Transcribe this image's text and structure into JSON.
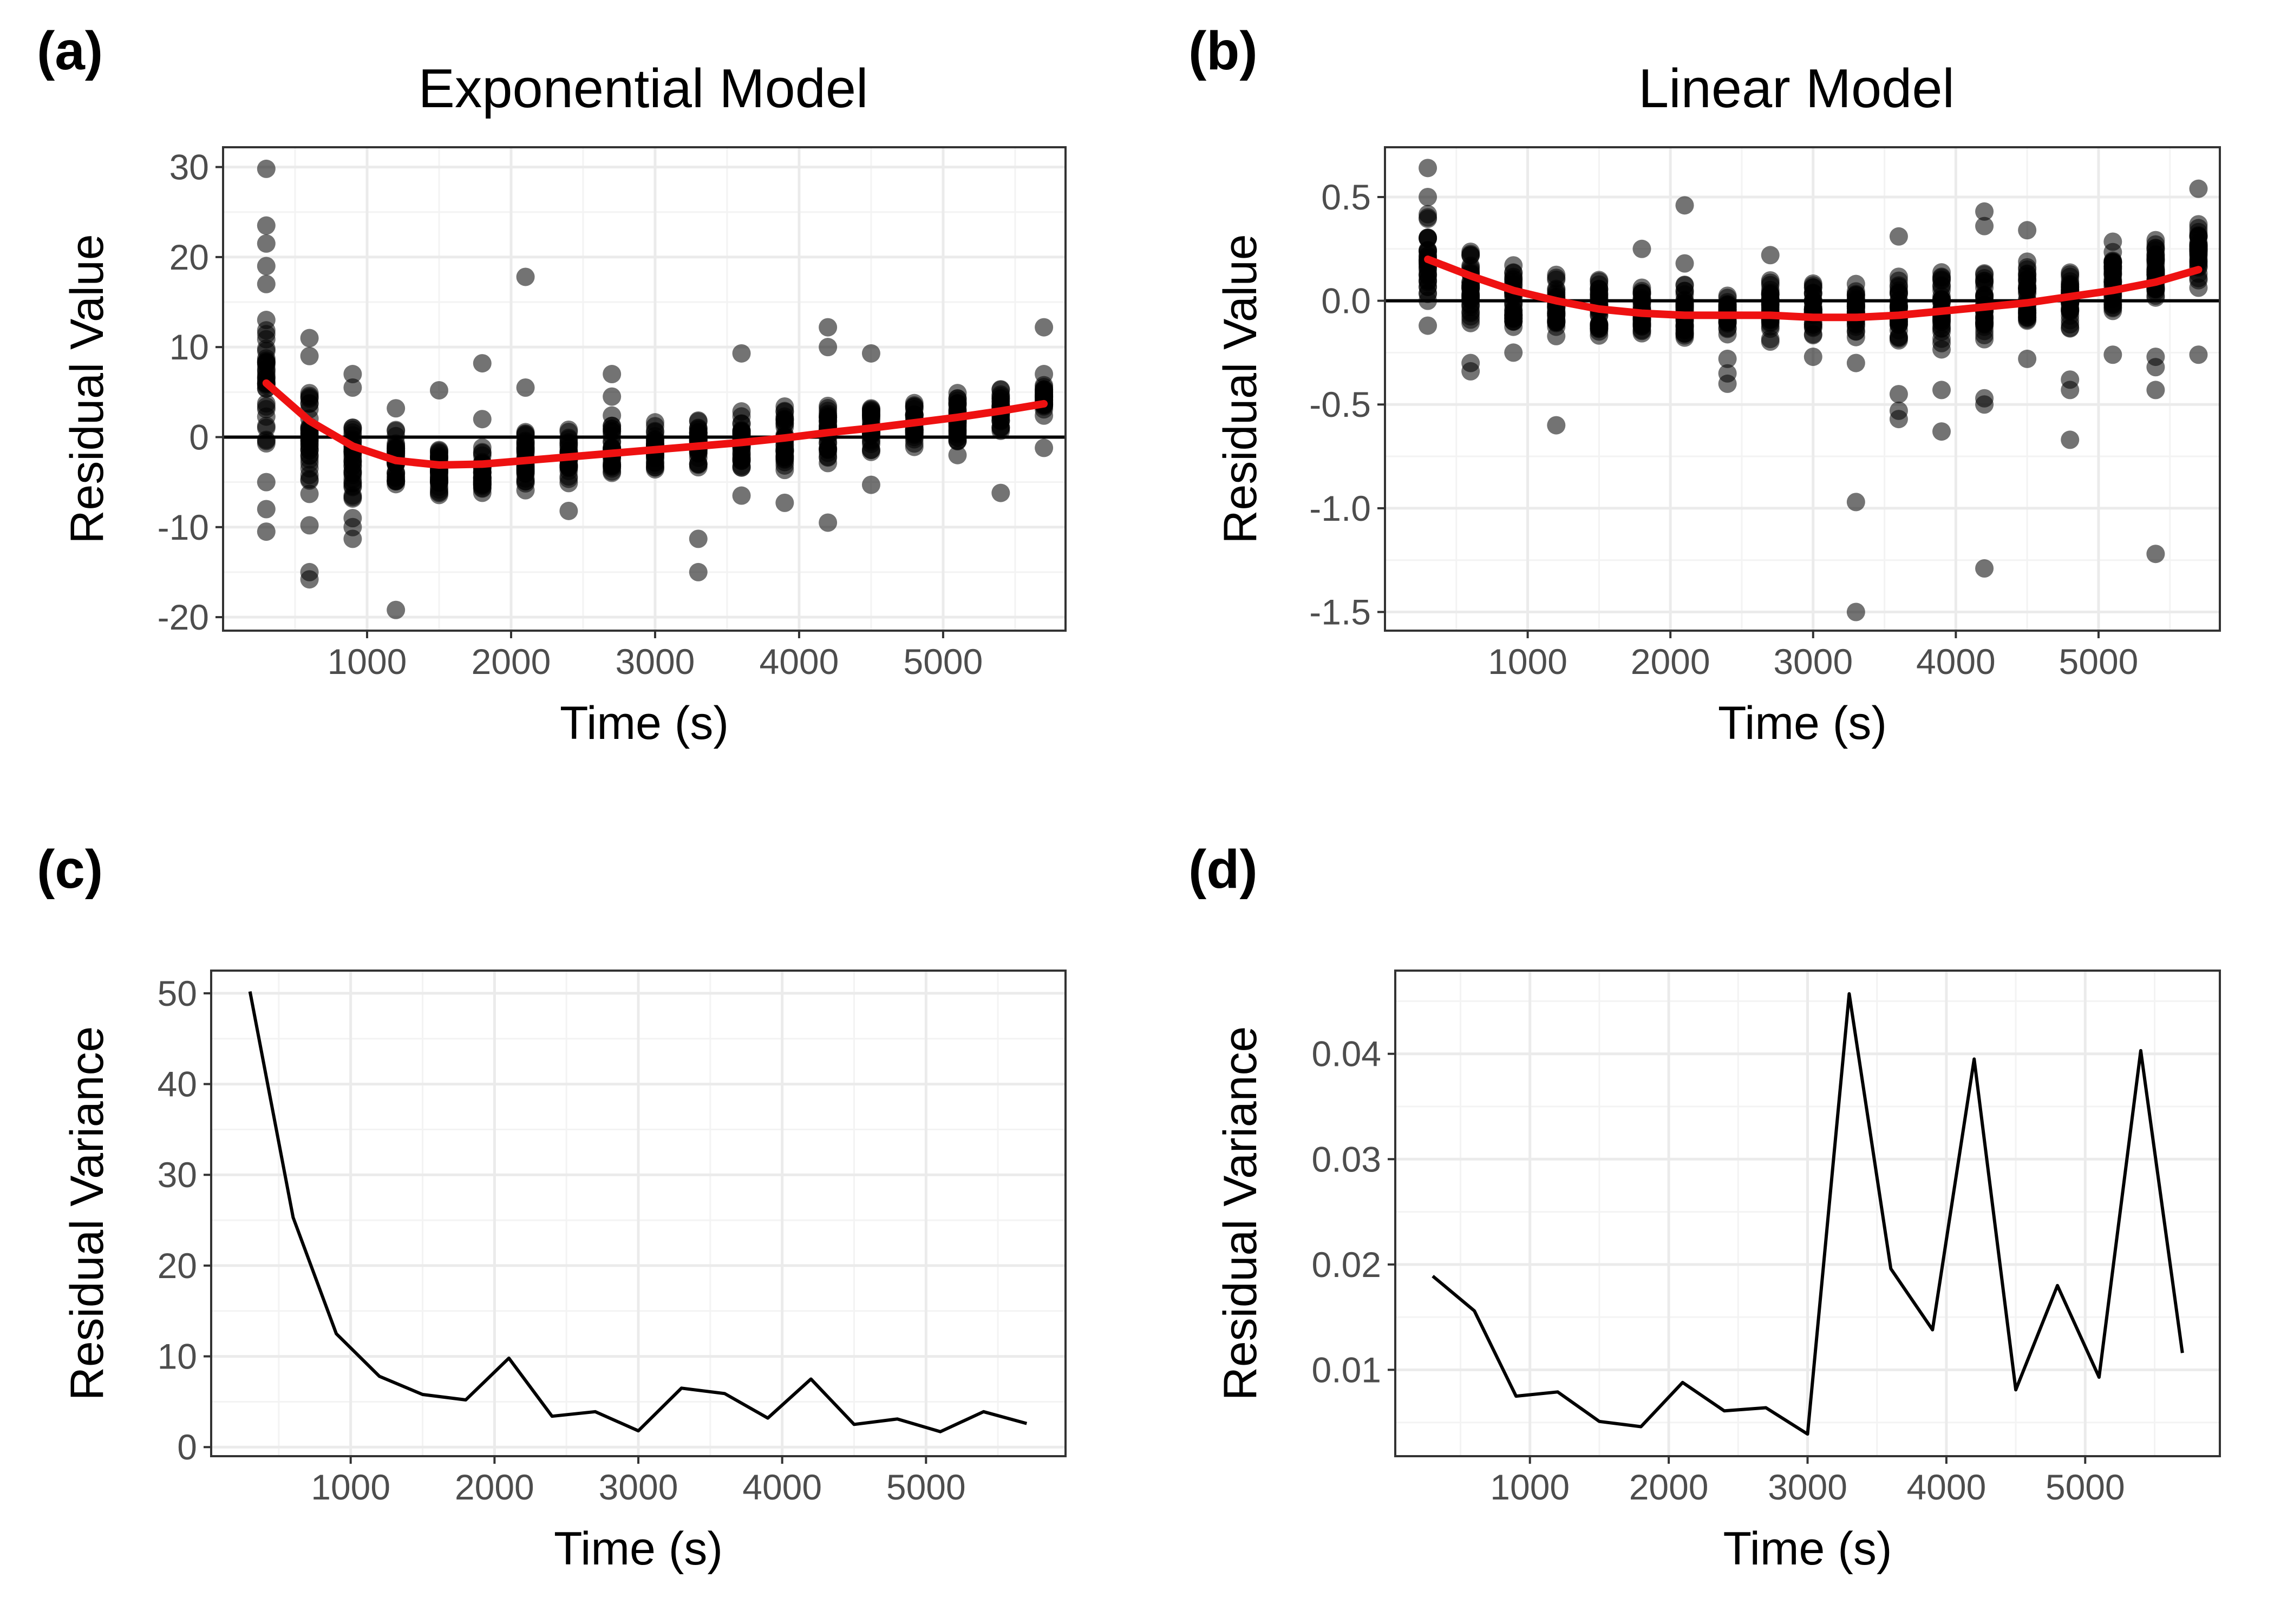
{
  "chart_data": [
    {
      "panel": "(a)",
      "type": "scatter",
      "title": "Exponential Model",
      "xlabel": "Time (s)",
      "ylabel": "Residual Value",
      "xlim": [
        0,
        5850
      ],
      "ylim": [
        -21.5,
        32.2
      ],
      "xticks": [
        1000,
        2000,
        3000,
        4000,
        5000
      ],
      "yticks": [
        -20,
        -10,
        0,
        10,
        20,
        30
      ],
      "tick_labels_y": [
        "-20",
        "-10",
        "0",
        "10",
        "20",
        "30"
      ],
      "tick_labels_x": [
        "1000",
        "2000",
        "3000",
        "4000",
        "5000"
      ],
      "hline": 0,
      "grid": true,
      "points_note": "many observations per time; per-time clusters given as [time, lower, upper] of dense column plus scattered outliers",
      "clusters": [
        [
          300,
          -2,
          15
        ],
        [
          600,
          -7,
          7
        ],
        [
          900,
          -8,
          4
        ],
        [
          1200,
          -6.5,
          1.5
        ],
        [
          1500,
          -8,
          0.5
        ],
        [
          1800,
          -7.5,
          0
        ],
        [
          2100,
          -6,
          1.5
        ],
        [
          2400,
          -6,
          1
        ],
        [
          2700,
          -5,
          2.5
        ],
        [
          3000,
          -4.5,
          2
        ],
        [
          3300,
          -4,
          2.5
        ],
        [
          3600,
          -4,
          3
        ],
        [
          3900,
          -4,
          3.5
        ],
        [
          4200,
          -3.5,
          4
        ],
        [
          4500,
          -2.5,
          4
        ],
        [
          4800,
          -2,
          4.5
        ],
        [
          5100,
          -1,
          5.5
        ],
        [
          5400,
          0,
          5.5
        ],
        [
          5700,
          2,
          6.5
        ]
      ],
      "outliers": [
        [
          300,
          29.8
        ],
        [
          300,
          23.5
        ],
        [
          300,
          21.5
        ],
        [
          300,
          19
        ],
        [
          300,
          17
        ],
        [
          300,
          -5
        ],
        [
          300,
          -8
        ],
        [
          300,
          -10.5
        ],
        [
          600,
          11
        ],
        [
          600,
          9
        ],
        [
          600,
          -9.8
        ],
        [
          600,
          -15
        ],
        [
          600,
          -15.8
        ],
        [
          900,
          7
        ],
        [
          900,
          5.5
        ],
        [
          900,
          -9
        ],
        [
          900,
          -10
        ],
        [
          900,
          -11.3
        ],
        [
          1200,
          3.2
        ],
        [
          1200,
          -19.2
        ],
        [
          1500,
          5.2
        ],
        [
          1800,
          8.2
        ],
        [
          1800,
          2
        ],
        [
          2100,
          17.8
        ],
        [
          2100,
          5.5
        ],
        [
          2400,
          -8.2
        ],
        [
          2700,
          7
        ],
        [
          2700,
          4.5
        ],
        [
          3300,
          -11.3
        ],
        [
          3300,
          -15
        ],
        [
          3600,
          9.3
        ],
        [
          3600,
          -6.5
        ],
        [
          3900,
          -7.3
        ],
        [
          4200,
          12.2
        ],
        [
          4200,
          10
        ],
        [
          4200,
          -9.5
        ],
        [
          4500,
          9.3
        ],
        [
          4500,
          -5.3
        ],
        [
          5100,
          -2
        ],
        [
          5400,
          -6.2
        ],
        [
          5700,
          12.2
        ],
        [
          5700,
          7
        ],
        [
          5700,
          -1.2
        ]
      ],
      "smooth": {
        "x": [
          300,
          600,
          900,
          1200,
          1500,
          1800,
          2100,
          2400,
          2700,
          3000,
          3300,
          3600,
          3900,
          4200,
          4500,
          4800,
          5100,
          5400,
          5700
        ],
        "y": [
          6.0,
          1.8,
          -1.0,
          -2.6,
          -3.1,
          -3.0,
          -2.6,
          -2.2,
          -1.8,
          -1.4,
          -1.0,
          -0.6,
          -0.1,
          0.5,
          1.0,
          1.6,
          2.2,
          2.9,
          3.7
        ]
      }
    },
    {
      "panel": "(b)",
      "type": "scatter",
      "title": "Linear Model",
      "xlabel": "Time (s)",
      "ylabel": "Residual Value",
      "xlim": [
        0,
        5850
      ],
      "ylim": [
        -1.59,
        0.74
      ],
      "xticks": [
        1000,
        2000,
        3000,
        4000,
        5000
      ],
      "yticks": [
        -1.5,
        -1.0,
        -0.5,
        0.0,
        0.5
      ],
      "tick_labels_y": [
        "-1.5",
        "-1.0",
        "-0.5",
        "0.0",
        "0.5"
      ],
      "tick_labels_x": [
        "1000",
        "2000",
        "3000",
        "4000",
        "5000"
      ],
      "hline": 0,
      "grid": true,
      "clusters": [
        [
          300,
          -0.05,
          0.45
        ],
        [
          600,
          -0.15,
          0.3
        ],
        [
          900,
          -0.2,
          0.2
        ],
        [
          1200,
          -0.2,
          0.15
        ],
        [
          1500,
          -0.2,
          0.15
        ],
        [
          1800,
          -0.2,
          0.1
        ],
        [
          2100,
          -0.2,
          0.1
        ],
        [
          2400,
          -0.2,
          0.05
        ],
        [
          2700,
          -0.2,
          0.15
        ],
        [
          3000,
          -0.2,
          0.1
        ],
        [
          3300,
          -0.2,
          0.1
        ],
        [
          3600,
          -0.25,
          0.15
        ],
        [
          3900,
          -0.3,
          0.15
        ],
        [
          4200,
          -0.25,
          0.2
        ],
        [
          4500,
          -0.2,
          0.25
        ],
        [
          4800,
          -0.15,
          0.25
        ],
        [
          5100,
          -0.1,
          0.3
        ],
        [
          5400,
          -0.05,
          0.35
        ],
        [
          5700,
          0.05,
          0.4
        ]
      ],
      "outliers": [
        [
          300,
          0.64
        ],
        [
          300,
          0.5
        ],
        [
          300,
          -0.12
        ],
        [
          600,
          -0.3
        ],
        [
          600,
          -0.34
        ],
        [
          900,
          -0.25
        ],
        [
          1200,
          -0.6
        ],
        [
          1800,
          0.25
        ],
        [
          2100,
          0.46
        ],
        [
          2100,
          0.18
        ],
        [
          2400,
          -0.35
        ],
        [
          2400,
          -0.4
        ],
        [
          2400,
          -0.28
        ],
        [
          2700,
          0.22
        ],
        [
          3000,
          -0.27
        ],
        [
          3300,
          -0.97
        ],
        [
          3300,
          -1.5
        ],
        [
          3300,
          -0.3
        ],
        [
          3600,
          0.31
        ],
        [
          3600,
          -0.45
        ],
        [
          3600,
          -0.53
        ],
        [
          3600,
          -0.57
        ],
        [
          3900,
          -0.43
        ],
        [
          3900,
          -0.63
        ],
        [
          4200,
          0.43
        ],
        [
          4200,
          0.36
        ],
        [
          4200,
          -0.47
        ],
        [
          4200,
          -0.5
        ],
        [
          4200,
          -1.29
        ],
        [
          4500,
          0.34
        ],
        [
          4500,
          -0.28
        ],
        [
          4800,
          -0.38
        ],
        [
          4800,
          -0.43
        ],
        [
          4800,
          -0.67
        ],
        [
          5100,
          -0.26
        ],
        [
          5400,
          -0.27
        ],
        [
          5400,
          -0.32
        ],
        [
          5400,
          -0.43
        ],
        [
          5400,
          -1.22
        ],
        [
          5700,
          0.54
        ],
        [
          5700,
          -0.26
        ]
      ],
      "smooth": {
        "x": [
          300,
          600,
          900,
          1200,
          1500,
          1800,
          2100,
          2400,
          2700,
          3000,
          3300,
          3600,
          3900,
          4200,
          4500,
          4800,
          5100,
          5400,
          5700
        ],
        "y": [
          0.2,
          0.12,
          0.05,
          0.0,
          -0.04,
          -0.06,
          -0.07,
          -0.07,
          -0.07,
          -0.08,
          -0.08,
          -0.07,
          -0.05,
          -0.03,
          -0.01,
          0.02,
          0.05,
          0.09,
          0.15
        ]
      }
    },
    {
      "panel": "(c)",
      "type": "line",
      "title": "",
      "xlabel": "Time (s)",
      "ylabel": "Residual Variance",
      "xlim": [
        30,
        5970
      ],
      "ylim": [
        -1.0,
        52.5
      ],
      "xticks": [
        1000,
        2000,
        3000,
        4000,
        5000
      ],
      "yticks": [
        0,
        10,
        20,
        30,
        40,
        50
      ],
      "tick_labels_y": [
        "0",
        "10",
        "20",
        "30",
        "40",
        "50"
      ],
      "tick_labels_x": [
        "1000",
        "2000",
        "3000",
        "4000",
        "5000"
      ],
      "grid": true,
      "x": [
        300,
        600,
        900,
        1200,
        1500,
        1800,
        2100,
        2400,
        2700,
        3000,
        3300,
        3600,
        3900,
        4200,
        4500,
        4800,
        5100,
        5400,
        5700
      ],
      "y": [
        50.2,
        25.3,
        12.5,
        7.8,
        5.8,
        5.2,
        9.8,
        3.4,
        3.9,
        1.8,
        6.5,
        5.9,
        3.2,
        7.5,
        2.5,
        3.1,
        1.7,
        3.9,
        2.6
      ]
    },
    {
      "panel": "(d)",
      "type": "line",
      "title": "",
      "xlabel": "Time (s)",
      "ylabel": "Residual Variance",
      "xlim": [
        30,
        5970
      ],
      "ylim": [
        0.0018,
        0.0479
      ],
      "xticks": [
        1000,
        2000,
        3000,
        4000,
        5000
      ],
      "yticks": [
        0.01,
        0.02,
        0.03,
        0.04
      ],
      "tick_labels_y": [
        "0.01",
        "0.02",
        "0.03",
        "0.04"
      ],
      "tick_labels_x": [
        "1000",
        "2000",
        "3000",
        "4000",
        "5000"
      ],
      "grid": true,
      "x": [
        300,
        600,
        900,
        1200,
        1500,
        1800,
        2100,
        2400,
        2700,
        3000,
        3300,
        3600,
        3900,
        4200,
        4500,
        4800,
        5100,
        5400,
        5700
      ],
      "y": [
        0.0189,
        0.0156,
        0.0075,
        0.0079,
        0.0051,
        0.0046,
        0.0088,
        0.0061,
        0.0064,
        0.0039,
        0.0457,
        0.0196,
        0.0138,
        0.0395,
        0.0081,
        0.018,
        0.0093,
        0.0403,
        0.0116
      ]
    }
  ]
}
